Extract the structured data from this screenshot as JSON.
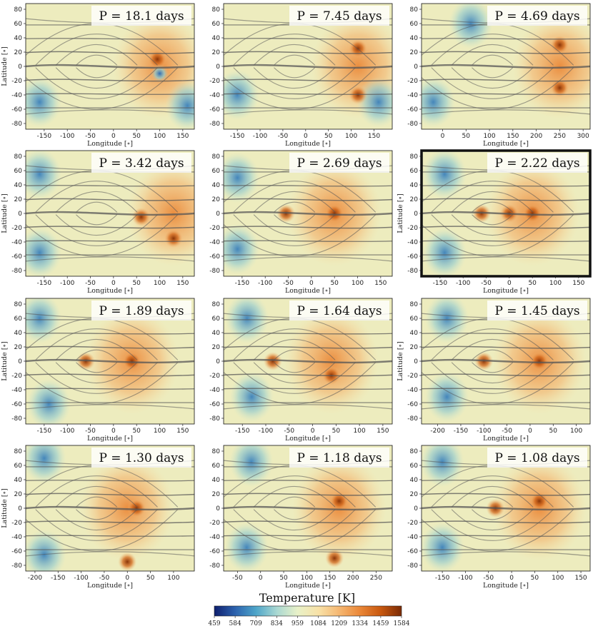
{
  "chart_data": {
    "type": "heatmap",
    "colorbar": {
      "title": "Temperature [K]",
      "min": 459,
      "max": 1584,
      "ticks": [
        "459",
        "584",
        "709",
        "834",
        "959",
        "1084",
        "1209",
        "1334",
        "1459",
        "1584"
      ],
      "colors": [
        "#0e1f6e",
        "#2c62ae",
        "#4ea5c9",
        "#a9d8d2",
        "#e8f1c8",
        "#f8e2a8",
        "#f5b772",
        "#ea8737",
        "#c8580f",
        "#7a2b05"
      ]
    },
    "panels": [
      {
        "label": "P = 18.1 days",
        "xlabel": "Longitude [∘]",
        "ylabel": "Latitude [∘]",
        "xlim": [
          -190,
          175
        ],
        "xticks": [
          -150,
          -100,
          -50,
          0,
          50,
          100,
          150
        ],
        "ylim": [
          -88,
          88
        ],
        "yticks": [
          -80,
          -60,
          -40,
          -20,
          0,
          20,
          40,
          60,
          80
        ],
        "highlight": false,
        "hotspots": [
          {
            "lon": 95,
            "lat": 10,
            "kind": "warm"
          },
          {
            "lon": 100,
            "lat": -10,
            "kind": "cold"
          }
        ],
        "cold_regions": [
          {
            "lon": -160,
            "lat": -50
          },
          {
            "lon": 160,
            "lat": -55
          }
        ]
      },
      {
        "label": "P = 7.45 days",
        "xlabel": "Longitude [∘]",
        "ylabel": "",
        "xlim": [
          -180,
          190
        ],
        "xticks": [
          -150,
          -100,
          -50,
          0,
          50,
          100,
          150
        ],
        "ylim": [
          -88,
          88
        ],
        "yticks": [
          -80,
          -60,
          -40,
          -20,
          0,
          20,
          40,
          60,
          80
        ],
        "highlight": false,
        "hotspots": [
          {
            "lon": 115,
            "lat": 25,
            "kind": "warm"
          },
          {
            "lon": 115,
            "lat": -40,
            "kind": "warm"
          }
        ],
        "cold_regions": [
          {
            "lon": -150,
            "lat": -40
          },
          {
            "lon": 160,
            "lat": -50
          }
        ]
      },
      {
        "label": "P = 4.69 days",
        "xlabel": "Longitude [∘]",
        "ylabel": "",
        "xlim": [
          -45,
          315
        ],
        "xticks": [
          0,
          50,
          100,
          150,
          200,
          250,
          300
        ],
        "ylim": [
          -88,
          88
        ],
        "yticks": [
          -80,
          -60,
          -40,
          -20,
          0,
          20,
          40,
          60,
          80
        ],
        "highlight": false,
        "hotspots": [
          {
            "lon": 250,
            "lat": 30,
            "kind": "warm"
          },
          {
            "lon": 250,
            "lat": -30,
            "kind": "warm"
          }
        ],
        "cold_regions": [
          {
            "lon": -20,
            "lat": -50
          },
          {
            "lon": 60,
            "lat": 60
          }
        ]
      },
      {
        "label": "P = 3.42 days",
        "xlabel": "Longitude [∘]",
        "ylabel": "Latitude [∘]",
        "xlim": [
          -190,
          175
        ],
        "xticks": [
          -150,
          -100,
          -50,
          0,
          50,
          100,
          150
        ],
        "ylim": [
          -88,
          88
        ],
        "yticks": [
          -80,
          -60,
          -40,
          -20,
          0,
          20,
          40,
          60,
          80
        ],
        "highlight": false,
        "hotspots": [
          {
            "lon": 60,
            "lat": -5,
            "kind": "warm"
          },
          {
            "lon": 130,
            "lat": -35,
            "kind": "warm"
          }
        ],
        "cold_regions": [
          {
            "lon": -160,
            "lat": 55
          },
          {
            "lon": -160,
            "lat": -55
          }
        ]
      },
      {
        "label": "P = 2.69 days",
        "xlabel": "Longitude [∘]",
        "ylabel": "",
        "xlim": [
          -190,
          175
        ],
        "xticks": [
          -150,
          -100,
          -50,
          0,
          50,
          100,
          150
        ],
        "ylim": [
          -88,
          88
        ],
        "yticks": [
          -80,
          -60,
          -40,
          -20,
          0,
          20,
          40,
          60,
          80
        ],
        "highlight": false,
        "hotspots": [
          {
            "lon": -55,
            "lat": 0,
            "kind": "warm"
          },
          {
            "lon": 50,
            "lat": 0,
            "kind": "warm"
          }
        ],
        "cold_regions": [
          {
            "lon": -160,
            "lat": 50
          },
          {
            "lon": -160,
            "lat": -50
          }
        ]
      },
      {
        "label": "P = 2.22 days",
        "xlabel": "Longitude [∘]",
        "ylabel": "Latitude [∘]",
        "xlim": [
          -190,
          175
        ],
        "xticks": [
          -150,
          -100,
          -50,
          0,
          50,
          100,
          150
        ],
        "ylim": [
          -88,
          88
        ],
        "yticks": [
          -80,
          -60,
          -40,
          -20,
          0,
          20,
          40,
          60,
          80
        ],
        "highlight": true,
        "hotspots": [
          {
            "lon": -60,
            "lat": 0,
            "kind": "warm"
          },
          {
            "lon": 0,
            "lat": 0,
            "kind": "warm"
          },
          {
            "lon": 50,
            "lat": 0,
            "kind": "warm"
          }
        ],
        "cold_regions": [
          {
            "lon": -140,
            "lat": 55
          },
          {
            "lon": -140,
            "lat": -55
          }
        ]
      },
      {
        "label": "P = 1.89 days",
        "xlabel": "Longitude [∘]",
        "ylabel": "Latitude [∘]",
        "xlim": [
          -190,
          175
        ],
        "xticks": [
          -150,
          -100,
          -50,
          0,
          50,
          100,
          150
        ],
        "ylim": [
          -88,
          88
        ],
        "yticks": [
          -80,
          -60,
          -40,
          -20,
          0,
          20,
          40,
          60,
          80
        ],
        "highlight": false,
        "hotspots": [
          {
            "lon": -60,
            "lat": 0,
            "kind": "warm"
          },
          {
            "lon": 40,
            "lat": 0,
            "kind": "warm"
          }
        ],
        "cold_regions": [
          {
            "lon": -140,
            "lat": -60
          },
          {
            "lon": -160,
            "lat": 60
          }
        ]
      },
      {
        "label": "P = 1.64 days",
        "xlabel": "Longitude [∘]",
        "ylabel": "",
        "xlim": [
          -190,
          170
        ],
        "xticks": [
          -150,
          -100,
          -50,
          0,
          50,
          100,
          150
        ],
        "ylim": [
          -88,
          88
        ],
        "yticks": [
          -80,
          -60,
          -40,
          -20,
          0,
          20,
          40,
          60,
          80
        ],
        "highlight": false,
        "hotspots": [
          {
            "lon": -85,
            "lat": 0,
            "kind": "warm"
          },
          {
            "lon": 40,
            "lat": -20,
            "kind": "warm"
          }
        ],
        "cold_regions": [
          {
            "lon": -140,
            "lat": 60
          },
          {
            "lon": -130,
            "lat": -50
          }
        ]
      },
      {
        "label": "P = 1.45 days",
        "xlabel": "Longitude [∘]",
        "ylabel": "Latitude [∘]",
        "xlim": [
          -235,
          130
        ],
        "xticks": [
          -200,
          -150,
          -100,
          -50,
          0,
          50,
          100
        ],
        "ylim": [
          -88,
          88
        ],
        "yticks": [
          -80,
          -60,
          -40,
          -20,
          0,
          20,
          40,
          60,
          80
        ],
        "highlight": false,
        "hotspots": [
          {
            "lon": -100,
            "lat": 0,
            "kind": "warm"
          },
          {
            "lon": 20,
            "lat": 0,
            "kind": "warm"
          }
        ],
        "cold_regions": [
          {
            "lon": -180,
            "lat": 60
          },
          {
            "lon": -180,
            "lat": -50
          }
        ]
      },
      {
        "label": "P = 1.30 days",
        "xlabel": "Longitude [∘]",
        "ylabel": "Latitude [∘]",
        "xlim": [
          -220,
          145
        ],
        "xticks": [
          -200,
          -150,
          -100,
          -50,
          0,
          50,
          100
        ],
        "ylim": [
          -88,
          88
        ],
        "yticks": [
          -80,
          -60,
          -40,
          -20,
          0,
          20,
          40,
          60,
          80
        ],
        "highlight": false,
        "hotspots": [
          {
            "lon": 20,
            "lat": 0,
            "kind": "warm"
          },
          {
            "lon": 0,
            "lat": -75,
            "kind": "warm"
          }
        ],
        "cold_regions": [
          {
            "lon": -180,
            "lat": 70
          },
          {
            "lon": -180,
            "lat": -65
          }
        ]
      },
      {
        "label": "P = 1.18 days",
        "xlabel": "Longitude [∘]",
        "ylabel": "",
        "xlim": [
          -80,
          285
        ],
        "xticks": [
          -50,
          0,
          50,
          100,
          150,
          200,
          250
        ],
        "ylim": [
          -88,
          88
        ],
        "yticks": [
          -80,
          -60,
          -40,
          -20,
          0,
          20,
          40,
          60,
          80
        ],
        "highlight": false,
        "hotspots": [
          {
            "lon": 160,
            "lat": -70,
            "kind": "warm"
          },
          {
            "lon": 170,
            "lat": 10,
            "kind": "warm"
          }
        ],
        "cold_regions": [
          {
            "lon": -30,
            "lat": -55
          },
          {
            "lon": -20,
            "lat": 65
          }
        ]
      },
      {
        "label": "P = 1.08 days",
        "xlabel": "Longitude [∘]",
        "ylabel": "",
        "xlim": [
          -195,
          170
        ],
        "xticks": [
          -150,
          -100,
          -50,
          0,
          50,
          100,
          150
        ],
        "ylim": [
          -88,
          88
        ],
        "yticks": [
          -80,
          -60,
          -40,
          -20,
          0,
          20,
          40,
          60,
          80
        ],
        "highlight": false,
        "hotspots": [
          {
            "lon": -35,
            "lat": 0,
            "kind": "warm"
          },
          {
            "lon": 60,
            "lat": 10,
            "kind": "warm"
          }
        ],
        "cold_regions": [
          {
            "lon": -150,
            "lat": 65
          },
          {
            "lon": -150,
            "lat": -55
          }
        ]
      }
    ]
  }
}
